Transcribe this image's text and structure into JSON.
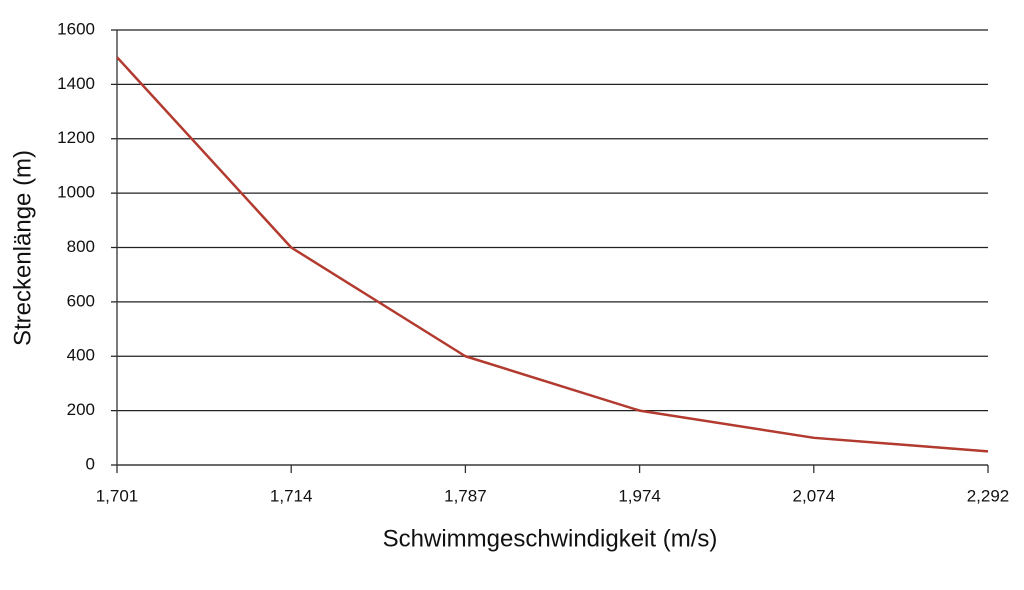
{
  "chart_data": {
    "type": "line",
    "x_label": "Schwimmgeschwindigkeit (m/s)",
    "y_label": "Streckenlänge (m)",
    "categories": [
      "1,701",
      "1,714",
      "1,787",
      "1,974",
      "2,074",
      "2,292"
    ],
    "series": [
      {
        "name": "Streckenlänge",
        "color": "#b23a2e",
        "values": [
          1500,
          800,
          400,
          200,
          100,
          50
        ]
      }
    ],
    "ylim": [
      0,
      1600
    ],
    "yticks": [
      0,
      200,
      400,
      600,
      800,
      1000,
      1200,
      1400,
      1600
    ],
    "grid": true
  }
}
